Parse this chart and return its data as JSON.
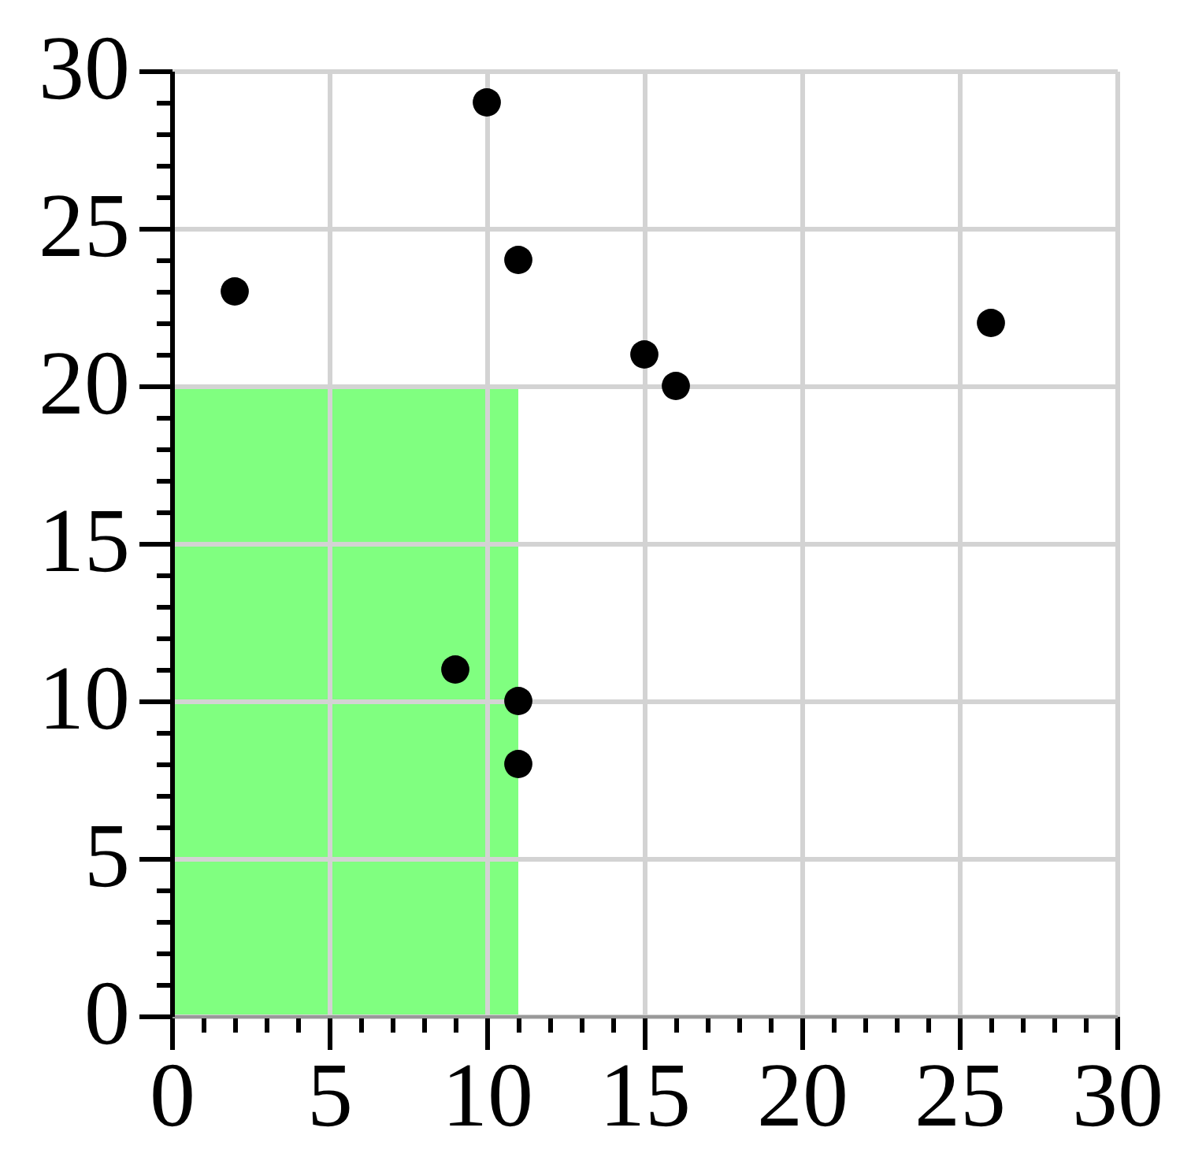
{
  "chart_data": {
    "type": "scatter",
    "series": [
      {
        "type": "area",
        "x": [
          0,
          11
        ],
        "values": [
          20,
          20
        ],
        "color": "#80ff80"
      },
      {
        "x": [
          2,
          10,
          11,
          15,
          16,
          26,
          9,
          11,
          11
        ],
        "values": [
          23,
          29,
          24,
          21,
          20,
          22,
          11,
          10,
          8
        ],
        "color": "#000000",
        "marker": "circle"
      }
    ],
    "xlim": [
      0,
      30
    ],
    "ylim": [
      0,
      30
    ],
    "xticks": [
      0,
      {
        "value": 1,
        "label": null
      },
      {
        "value": 2,
        "label": null
      },
      {
        "value": 3,
        "label": null
      },
      {
        "value": 4,
        "label": null
      },
      5,
      {
        "value": 6,
        "label": null
      },
      {
        "value": 7,
        "label": null
      },
      {
        "value": 8,
        "label": null
      },
      {
        "value": 9,
        "label": null
      },
      10,
      {
        "value": 11,
        "label": null
      },
      {
        "value": 12,
        "label": null
      },
      {
        "value": 13,
        "label": null
      },
      {
        "value": 14,
        "label": null
      },
      15,
      {
        "value": 16,
        "label": null
      },
      {
        "value": 17,
        "label": null
      },
      {
        "value": 18,
        "label": null
      },
      {
        "value": 19,
        "label": null
      },
      20,
      {
        "value": 21,
        "label": null
      },
      {
        "value": 22,
        "label": null
      },
      {
        "value": 23,
        "label": null
      },
      {
        "value": 24,
        "label": null
      },
      25,
      {
        "value": 26,
        "label": null
      },
      {
        "value": 27,
        "label": null
      },
      {
        "value": 28,
        "label": null
      },
      {
        "value": 29,
        "label": null
      },
      30
    ],
    "yticks": [
      0,
      {
        "value": 1,
        "label": null
      },
      {
        "value": 2,
        "label": null
      },
      {
        "value": 3,
        "label": null
      },
      {
        "value": 4,
        "label": null
      },
      5,
      {
        "value": 6,
        "label": null
      },
      {
        "value": 7,
        "label": null
      },
      {
        "value": 8,
        "label": null
      },
      {
        "value": 9,
        "label": null
      },
      10,
      {
        "value": 11,
        "label": null
      },
      {
        "value": 12,
        "label": null
      },
      {
        "value": 13,
        "label": null
      },
      {
        "value": 14,
        "label": null
      },
      15,
      {
        "value": 16,
        "label": null
      },
      {
        "value": 17,
        "label": null
      },
      {
        "value": 18,
        "label": null
      },
      {
        "value": 19,
        "label": null
      },
      20,
      {
        "value": 21,
        "label": null
      },
      {
        "value": 22,
        "label": null
      },
      {
        "value": 23,
        "label": null
      },
      {
        "value": 24,
        "label": null
      },
      25,
      {
        "value": 26,
        "label": null
      },
      {
        "value": 27,
        "label": null
      },
      {
        "value": 28,
        "label": null
      },
      {
        "value": 29,
        "label": null
      },
      30
    ],
    "grid": true
  }
}
